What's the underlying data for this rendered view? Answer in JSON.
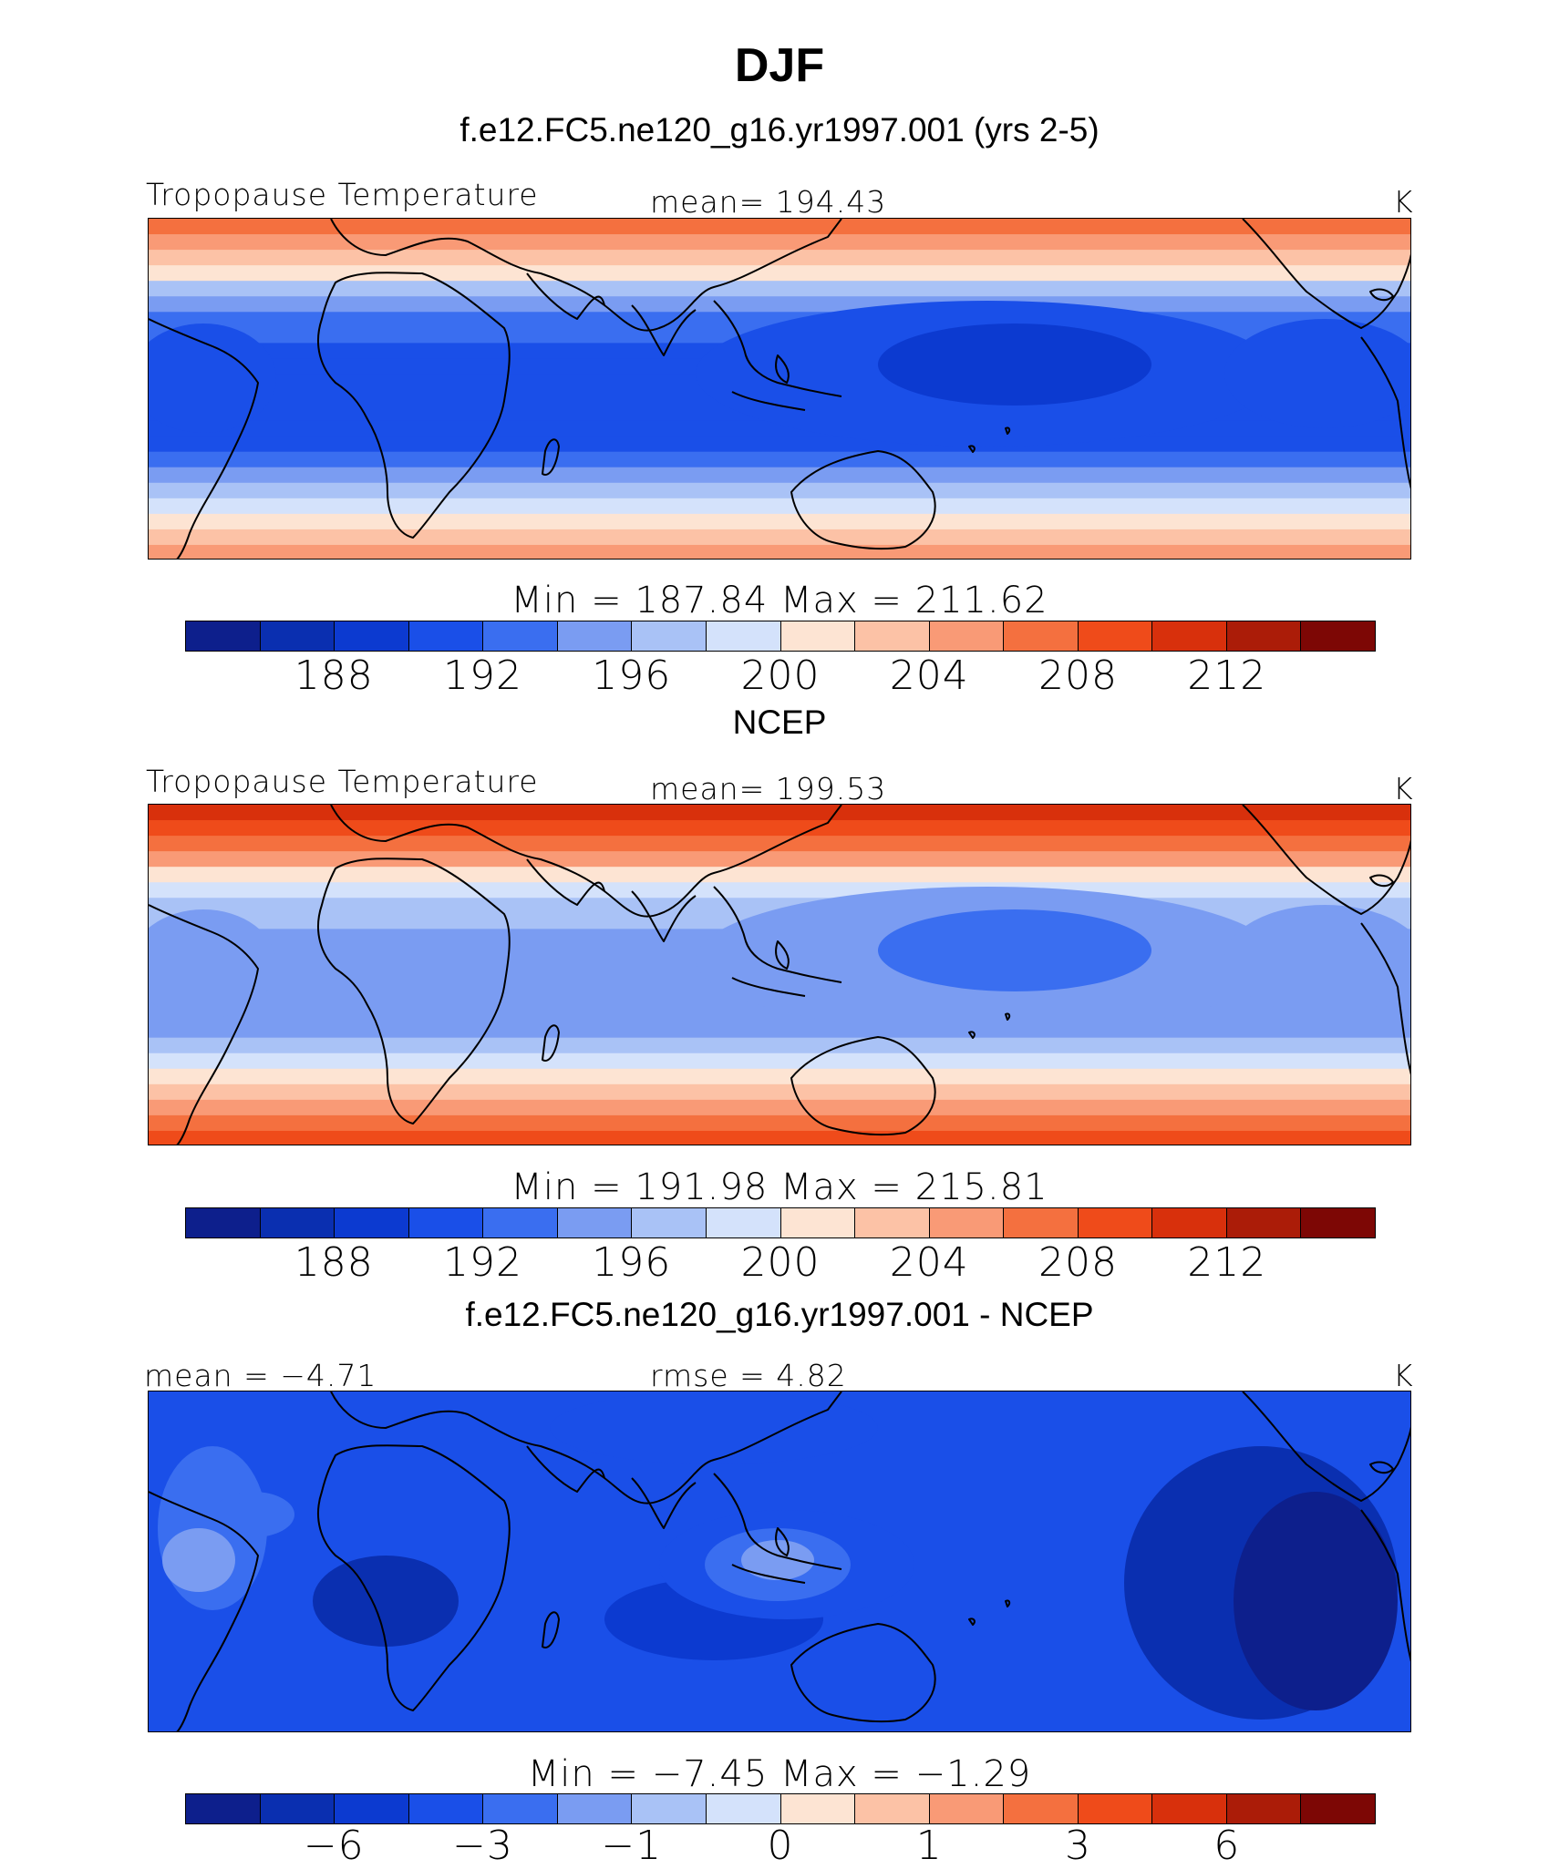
{
  "title": "DJF",
  "colors": [
    "#0d1f8c",
    "#0a2fb0",
    "#0c3ad0",
    "#1a4fe8",
    "#3a6ef0",
    "#7a9cf2",
    "#a9c2f6",
    "#d4e2fb",
    "#fde4d3",
    "#fcc2a6",
    "#f99a76",
    "#f4703f",
    "#ef4b1a",
    "#d8300c",
    "#ab1c08",
    "#7d0705"
  ],
  "panels": [
    {
      "title": "f.e12.FC5.ne120_g16.yr1997.001 (yrs 2-5)",
      "left_label": "Tropopause Temperature",
      "center_label": "mean=  194.43",
      "unit": "K",
      "minmax": "Min  =  187.84  Max  =  211.62",
      "ticks": [
        "188",
        "192",
        "196",
        "200",
        "204",
        "208",
        "212"
      ],
      "field": {
        "pole_north": 209,
        "pole_south": 207,
        "tropics": 191,
        "pacific_min": 188
      }
    },
    {
      "title": "NCEP",
      "left_label": "Tropopause Temperature",
      "center_label": "mean=  199.53",
      "unit": "K",
      "minmax": "Min  =  191.98  Max  =  215.81",
      "ticks": [
        "188",
        "192",
        "196",
        "200",
        "204",
        "208",
        "212"
      ],
      "field": {
        "pole_north": 213,
        "pole_south": 210,
        "tropics": 195,
        "pacific_min": 193
      }
    },
    {
      "title": "f.e12.FC5.ne120_g16.yr1997.001 - NCEP",
      "left_label": "mean =   −4.71",
      "center_label": "rmse =    4.82",
      "unit": "K",
      "minmax": "Min  =   −7.45  Max  =   −1.29",
      "ticks": [
        "−6",
        "−3",
        "−1",
        "0",
        "1",
        "3",
        "6"
      ],
      "field": {
        "background": -4.5,
        "pacific_min": -6.5,
        "southamerica_max": -2,
        "indonesia_max": -2
      }
    }
  ]
}
